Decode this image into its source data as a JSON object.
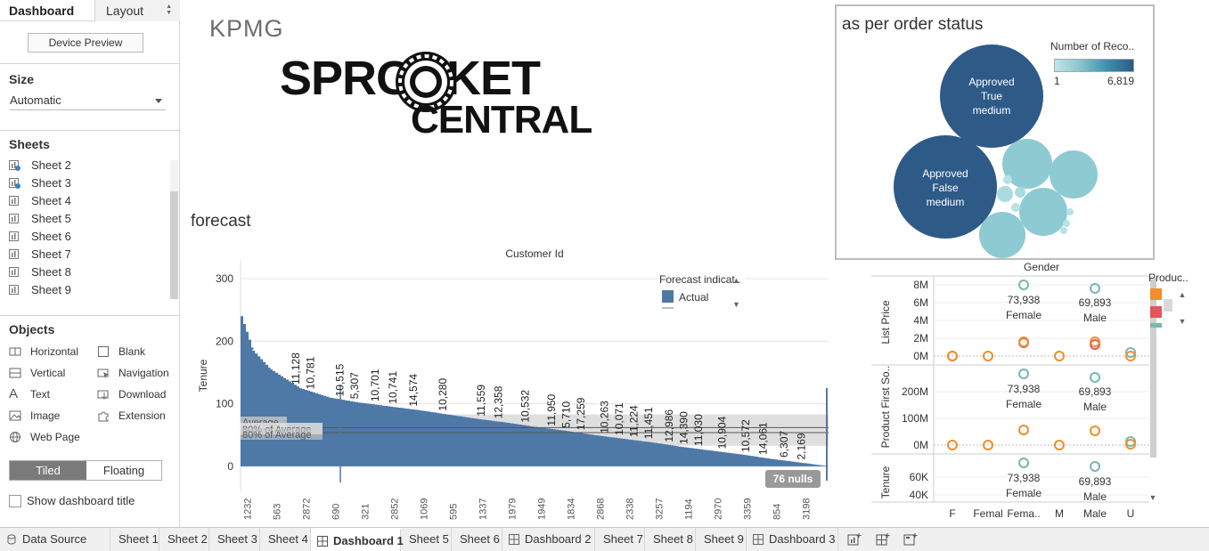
{
  "left_pane": {
    "tabs": [
      "Dashboard",
      "Layout"
    ],
    "device_preview": "Device Preview",
    "size": {
      "title": "Size",
      "value": "Automatic"
    },
    "sheets": {
      "title": "Sheets",
      "items": [
        "Sheet 2",
        "Sheet 3",
        "Sheet 4",
        "Sheet 5",
        "Sheet 6",
        "Sheet 7",
        "Sheet 8",
        "Sheet 9"
      ]
    },
    "objects": {
      "title": "Objects",
      "left": [
        "Horizontal",
        "Vertical",
        "Text",
        "Image",
        "Web Page"
      ],
      "right": [
        "Blank",
        "Navigation",
        "Download",
        "Extension"
      ]
    },
    "tiled": "Tiled",
    "floating": "Floating",
    "show_title": "Show dashboard title"
  },
  "logo": {
    "kpmg": "KPMG",
    "line1": "SPROCKET",
    "line2": "CENTRAL"
  },
  "forecast": {
    "title": "forecast",
    "top_label": "Customer Id",
    "legend_title": "Forecast indicat..",
    "legend_item": "Actual",
    "nulls": "76 nulls",
    "ref_label_1": "Average",
    "ref_label_2": "80% of Average",
    "ref_label_3": "80% of Average"
  },
  "bubble": {
    "title": "as per order status",
    "legend_title": "Number of Reco..",
    "legend_min": "1",
    "legend_max": "6,819",
    "big1": [
      "Approved",
      "True",
      "medium"
    ],
    "big2": [
      "Approved",
      "False",
      "medium"
    ]
  },
  "gender_chart": {
    "title": "Gender",
    "legend_title": "Produc..",
    "panes": [
      {
        "ylabel": "List Price",
        "ticks": [
          "8M",
          "6M",
          "4M",
          "2M",
          "0M"
        ],
        "labels": [
          "73,938",
          "Female",
          "69,893",
          "Male"
        ]
      },
      {
        "ylabel": "Product First So..",
        "ticks": [
          "200M",
          "100M",
          "0M"
        ],
        "labels": [
          "73,938",
          "Female",
          "69,893",
          "Male"
        ]
      },
      {
        "ylabel": "Tenure",
        "ticks": [
          "60K",
          "40K"
        ],
        "labels": [
          "73,938",
          "Female",
          "69,893",
          "Male"
        ]
      }
    ],
    "xcats": [
      "F",
      "Femal",
      "Fema..",
      "M",
      "Male",
      "U"
    ]
  },
  "tabbar": {
    "tabs": [
      "Data Source",
      "Sheet 1",
      "Sheet 2",
      "Sheet 3",
      "Sheet 4",
      "Dashboard 1",
      "Sheet 5",
      "Sheet 6",
      "Dashboard 2",
      "Sheet 7",
      "Sheet 8",
      "Sheet 9",
      "Dashboard 3"
    ],
    "active": "Dashboard 1"
  },
  "chart_data": {
    "type": "area",
    "title": "forecast",
    "xlabel": "Customer Id",
    "ylabel": "Tenure",
    "ylim": [
      -40,
      330
    ],
    "yticks": [
      0,
      100,
      200,
      300
    ],
    "x_tick_labels": [
      "1232",
      "563",
      "2872",
      "690",
      "321",
      "2852",
      "1069",
      "595",
      "1337",
      "1979",
      "1949",
      "1834",
      "2868",
      "2338",
      "3257",
      "1194",
      "2970",
      "3359",
      "854",
      "3198"
    ],
    "curve_points": [
      [
        0,
        240
      ],
      [
        0.02,
        185
      ],
      [
        0.05,
        155
      ],
      [
        0.1,
        125
      ],
      [
        0.15,
        110
      ],
      [
        0.2,
        102
      ],
      [
        0.25,
        96
      ],
      [
        0.3,
        90
      ],
      [
        0.35,
        83
      ],
      [
        0.4,
        76
      ],
      [
        0.45,
        70
      ],
      [
        0.5,
        63
      ],
      [
        0.55,
        57
      ],
      [
        0.6,
        50
      ],
      [
        0.65,
        44
      ],
      [
        0.7,
        38
      ],
      [
        0.75,
        31
      ],
      [
        0.8,
        25
      ],
      [
        0.85,
        19
      ],
      [
        0.9,
        12
      ],
      [
        0.95,
        6
      ],
      [
        1,
        0
      ]
    ],
    "value_labels": [
      {
        "label": "11,128",
        "pos": 0.1
      },
      {
        "label": "10,781",
        "pos": 0.125
      },
      {
        "label": "10,515",
        "pos": 0.175
      },
      {
        "label": "5,307",
        "pos": 0.2
      },
      {
        "label": "10,701",
        "pos": 0.235
      },
      {
        "label": "10,741",
        "pos": 0.265
      },
      {
        "label": "14,574",
        "pos": 0.3
      },
      {
        "label": "10,280",
        "pos": 0.35
      },
      {
        "label": "11,559",
        "pos": 0.415
      },
      {
        "label": "12,358",
        "pos": 0.445
      },
      {
        "label": "10,532",
        "pos": 0.49
      },
      {
        "label": "11,950",
        "pos": 0.535
      },
      {
        "label": "5,710",
        "pos": 0.56
      },
      {
        "label": "17,259",
        "pos": 0.585
      },
      {
        "label": "10,263",
        "pos": 0.625
      },
      {
        "label": "10,071",
        "pos": 0.65
      },
      {
        "label": "11,224",
        "pos": 0.675
      },
      {
        "label": "11,451",
        "pos": 0.7
      },
      {
        "label": "12,986",
        "pos": 0.735
      },
      {
        "label": "14,390",
        "pos": 0.76
      },
      {
        "label": "11,030",
        "pos": 0.785
      },
      {
        "label": "10,904",
        "pos": 0.825
      },
      {
        "label": "10,572",
        "pos": 0.865
      },
      {
        "label": "14,061",
        "pos": 0.895
      },
      {
        "label": "6,307",
        "pos": 0.93
      },
      {
        "label": "2,169",
        "pos": 0.96
      }
    ],
    "reference_band": [
      33,
      83
    ],
    "reference_lines": [
      54,
      62
    ],
    "colors": {
      "actual": "#4e79a7",
      "band": "#d9d9d9"
    }
  }
}
